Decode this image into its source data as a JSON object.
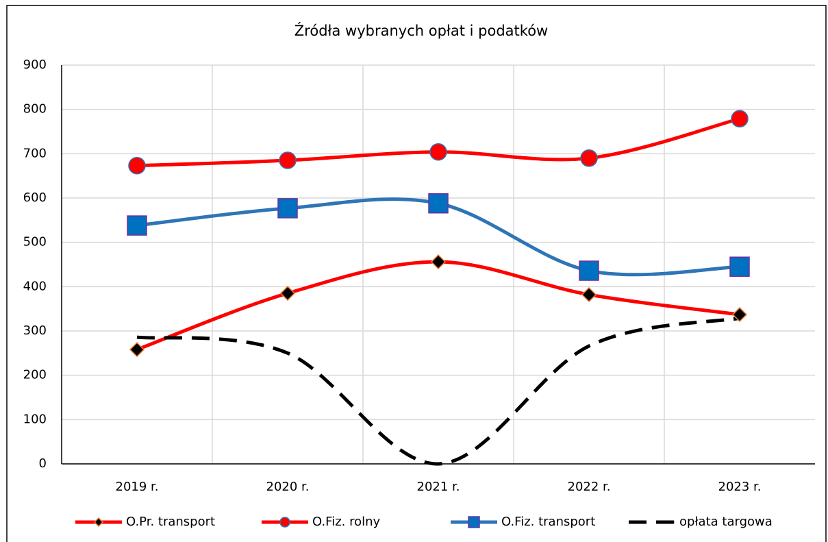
{
  "chart_data": {
    "type": "line",
    "title": "Źródła wybranych opłat i podatków",
    "categories": [
      "2019 r.",
      "2020 r.",
      "2021 r.",
      "2022 r.",
      "2023 r."
    ],
    "ylim": [
      0,
      900
    ],
    "yticks": [
      0,
      100,
      200,
      300,
      400,
      500,
      600,
      700,
      800,
      900
    ],
    "grid": true,
    "smooth": true,
    "legend": "bottom",
    "series": [
      {
        "name": "O.Pr. transport",
        "color": "#ff0000",
        "marker": "diamond",
        "marker_fill": "#000000",
        "marker_stroke": "#ed7d31",
        "values": [
          258,
          385,
          456,
          382,
          337
        ]
      },
      {
        "name": "O.Fiz. rolny",
        "color": "#ff0000",
        "marker": "circle",
        "marker_fill": "#ff0000",
        "marker_stroke": "#2e75b6",
        "values": [
          673,
          685,
          704,
          690,
          779
        ]
      },
      {
        "name": "O.Fiz. transport",
        "color": "#2e75b6",
        "marker": "square",
        "marker_fill": "#0070c0",
        "marker_stroke": "#7030a0",
        "values": [
          538,
          577,
          588,
          436,
          445
        ]
      },
      {
        "name": "opłata targowa",
        "color": "#000000",
        "dash": true,
        "marker": "none",
        "values": [
          286,
          250,
          0,
          266,
          329
        ]
      }
    ]
  }
}
